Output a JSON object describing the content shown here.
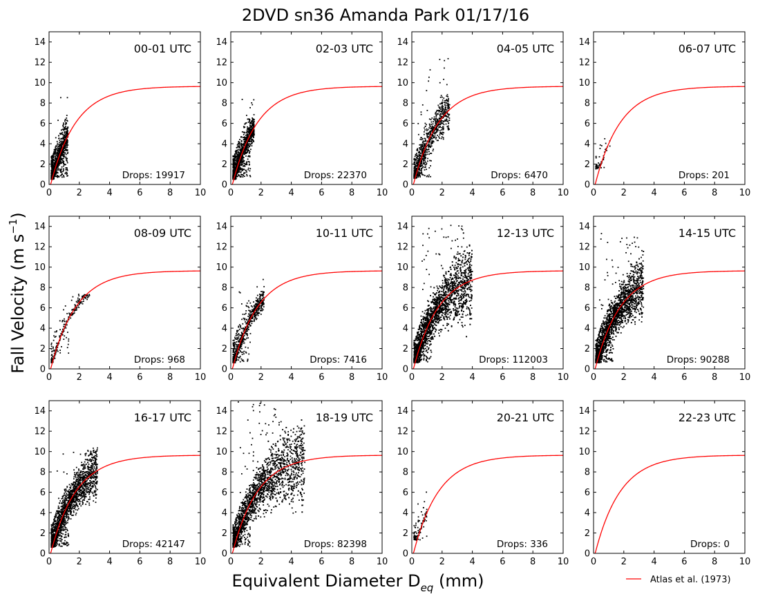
{
  "chart_data": {
    "type": "scatter",
    "title": "2DVD sn36 Amanda Park 01/17/16",
    "xlabel": "Equivalent Diameter D",
    "xlabel_sub": "eq",
    "xlabel_unit": " (mm)",
    "ylabel": "Fall Velocity (m s",
    "ylabel_sup": "−1",
    "ylabel_end": ")",
    "xlim": [
      0,
      10
    ],
    "ylim": [
      0,
      15
    ],
    "xticks": [
      "0",
      "2",
      "4",
      "6",
      "8",
      "10"
    ],
    "yticks": [
      "0",
      "2",
      "4",
      "6",
      "8",
      "10",
      "12",
      "14"
    ],
    "grid": false,
    "legend": {
      "label": "Atlas et al. (1973)",
      "color": "#ff0000",
      "position": "bottom-right"
    },
    "curve": {
      "name": "Atlas et al. (1973)",
      "formula": "9.65 - 10.3*exp(-0.6*D)",
      "color": "#ff0000"
    },
    "marker_color": "#000000",
    "panels": [
      {
        "label": "00-01 UTC",
        "drops_text": "Drops: 19917",
        "drops": 19917
      },
      {
        "label": "02-03 UTC",
        "drops_text": "Drops: 22370",
        "drops": 22370
      },
      {
        "label": "04-05 UTC",
        "drops_text": "Drops: 6470",
        "drops": 6470
      },
      {
        "label": "06-07 UTC",
        "drops_text": "Drops: 201",
        "drops": 201
      },
      {
        "label": "08-09 UTC",
        "drops_text": "Drops: 968",
        "drops": 968
      },
      {
        "label": "10-11 UTC",
        "drops_text": "Drops: 7416",
        "drops": 7416
      },
      {
        "label": "12-13 UTC",
        "drops_text": "Drops: 112003",
        "drops": 112003
      },
      {
        "label": "14-15 UTC",
        "drops_text": "Drops: 90288",
        "drops": 90288
      },
      {
        "label": "16-17 UTC",
        "drops_text": "Drops: 42147",
        "drops": 42147
      },
      {
        "label": "18-19 UTC",
        "drops_text": "Drops: 82398",
        "drops": 82398
      },
      {
        "label": "20-21 UTC",
        "drops_text": "Drops: 336",
        "drops": 336
      },
      {
        "label": "22-23 UTC",
        "drops_text": "Drops: 0",
        "drops": 0
      }
    ]
  }
}
